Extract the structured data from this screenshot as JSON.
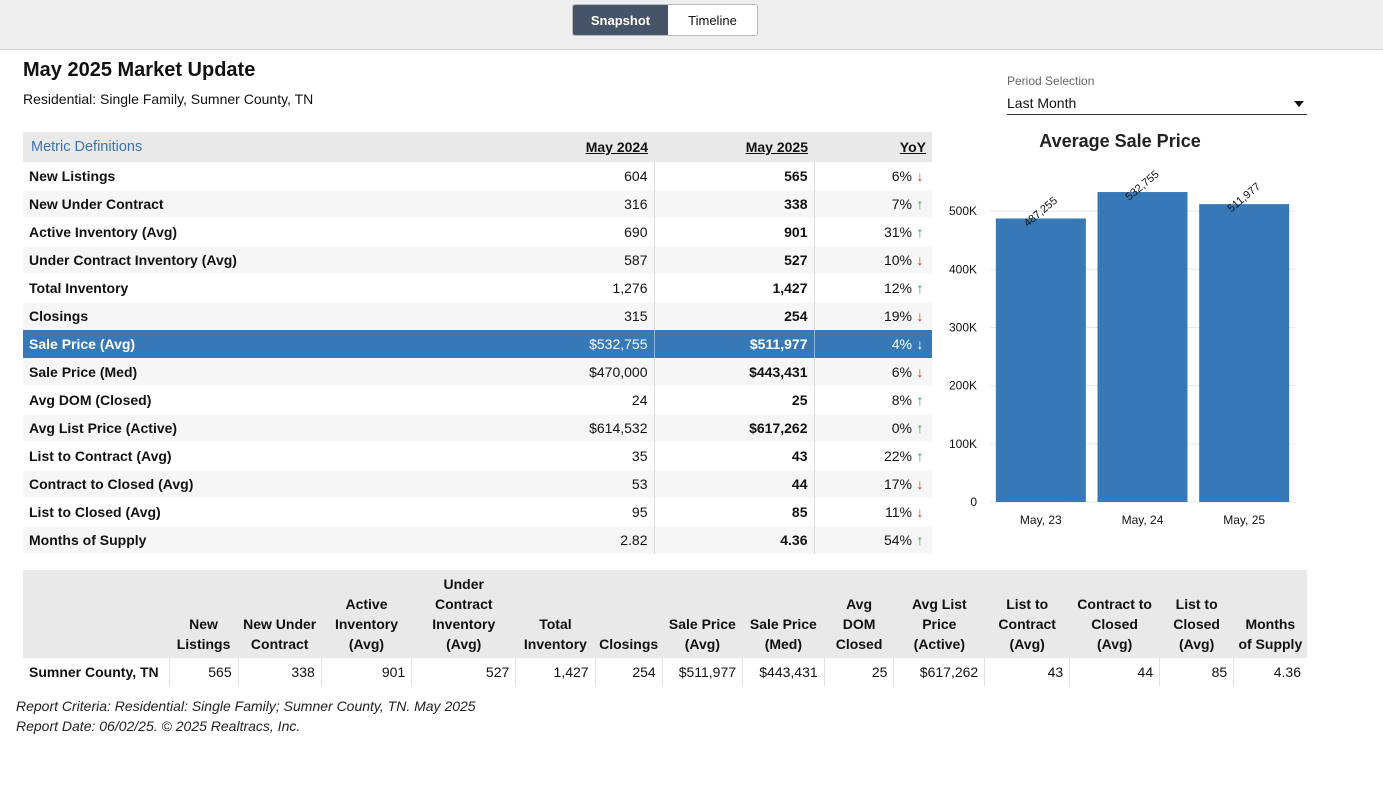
{
  "toggle": {
    "snapshot_label": "Snapshot",
    "timeline_label": "Timeline",
    "active": "Snapshot"
  },
  "header": {
    "title": "May 2025 Market Update",
    "subtitle": "Residential: Single Family, Sumner County, TN"
  },
  "period": {
    "label": "Period Selection",
    "value": "Last Month"
  },
  "metrics": {
    "definitions_link": "Metric Definitions",
    "col_prev": "May 2024",
    "col_curr": "May 2025",
    "col_yoy": "YoY",
    "selected_row": 6,
    "rows": [
      {
        "name": "New Listings",
        "prev": "604",
        "curr": "565",
        "yoy": "6%",
        "dir": "down"
      },
      {
        "name": "New Under Contract",
        "prev": "316",
        "curr": "338",
        "yoy": "7%",
        "dir": "up"
      },
      {
        "name": "Active Inventory (Avg)",
        "prev": "690",
        "curr": "901",
        "yoy": "31%",
        "dir": "up"
      },
      {
        "name": "Under Contract Inventory (Avg)",
        "prev": "587",
        "curr": "527",
        "yoy": "10%",
        "dir": "down"
      },
      {
        "name": "Total Inventory",
        "prev": "1,276",
        "curr": "1,427",
        "yoy": "12%",
        "dir": "up"
      },
      {
        "name": "Closings",
        "prev": "315",
        "curr": "254",
        "yoy": "19%",
        "dir": "down"
      },
      {
        "name": "Sale Price (Avg)",
        "prev": "$532,755",
        "curr": "$511,977",
        "yoy": "4%",
        "dir": "down"
      },
      {
        "name": "Sale Price (Med)",
        "prev": "$470,000",
        "curr": "$443,431",
        "yoy": "6%",
        "dir": "down"
      },
      {
        "name": "Avg DOM (Closed)",
        "prev": "24",
        "curr": "25",
        "yoy": "8%",
        "dir": "up"
      },
      {
        "name": "Avg List Price (Active)",
        "prev": "$614,532",
        "curr": "$617,262",
        "yoy": "0%",
        "dir": "up"
      },
      {
        "name": "List to Contract (Avg)",
        "prev": "35",
        "curr": "43",
        "yoy": "22%",
        "dir": "up"
      },
      {
        "name": "Contract to Closed (Avg)",
        "prev": "53",
        "curr": "44",
        "yoy": "17%",
        "dir": "down"
      },
      {
        "name": "List to Closed (Avg)",
        "prev": "95",
        "curr": "85",
        "yoy": "11%",
        "dir": "down"
      },
      {
        "name": "Months of Supply",
        "prev": "2.82",
        "curr": "4.36",
        "yoy": "54%",
        "dir": "up"
      }
    ]
  },
  "chart_data": {
    "type": "bar",
    "title": "Average Sale Price",
    "categories": [
      "May, 23",
      "May, 24",
      "May, 25"
    ],
    "values": [
      487255,
      532755,
      511977
    ],
    "value_labels": [
      "487,255",
      "532,755",
      "511,977"
    ],
    "yticks": [
      0,
      100000,
      200000,
      300000,
      400000,
      500000
    ],
    "ytick_labels": [
      "0",
      "100K",
      "200K",
      "300K",
      "400K",
      "500K"
    ],
    "ylim": [
      0,
      550000
    ],
    "bar_color": "#3778b7",
    "grid": true
  },
  "summary": {
    "headers": [
      "",
      "New Listings",
      "New Under Contract",
      "Active Inventory (Avg)",
      "Under Contract Inventory (Avg)",
      "Total Inventory",
      "Closings",
      "Sale Price (Avg)",
      "Sale Price (Med)",
      "Avg DOM Closed",
      "Avg List Price (Active)",
      "List to Contract (Avg)",
      "Contract to Closed (Avg)",
      "List to Closed (Avg)",
      "Months of Supply"
    ],
    "row": [
      "Sumner County, TN",
      "565",
      "338",
      "901",
      "527",
      "1,427",
      "254",
      "$511,977",
      "$443,431",
      "25",
      "$617,262",
      "43",
      "44",
      "85",
      "4.36"
    ]
  },
  "footer": {
    "criteria": "Report Criteria: Residential: Single Family; Sumner County, TN. May 2025",
    "date": "Report Date: 06/02/25. © 2025 Realtracs, Inc."
  },
  "colors": {
    "arrow_down": "#c0392b",
    "arrow_up": "#1a9a50",
    "selected_row": "#3778b7",
    "toggle_active": "#455466"
  }
}
